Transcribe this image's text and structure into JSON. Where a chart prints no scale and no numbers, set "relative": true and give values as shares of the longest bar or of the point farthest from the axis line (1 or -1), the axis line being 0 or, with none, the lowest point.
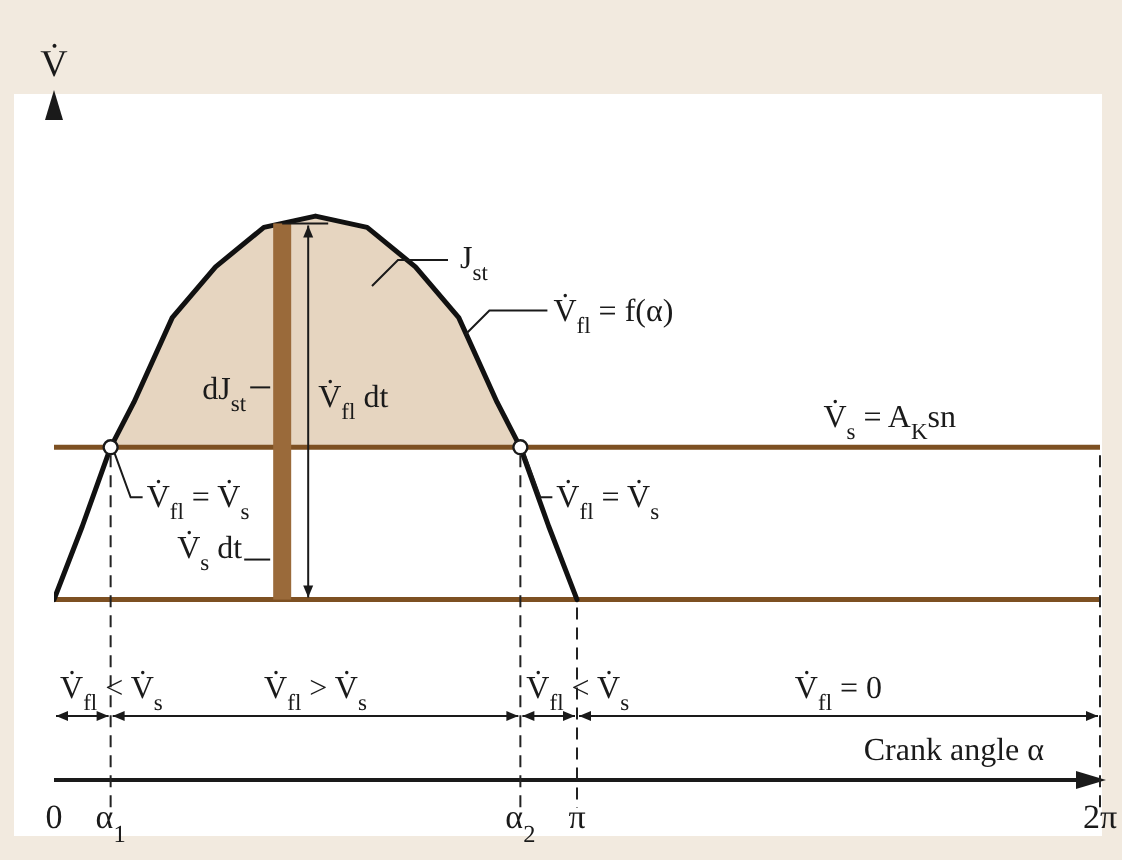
{
  "chart_data": {
    "type": "line",
    "relative": true,
    "xlabel": "Crank angle α",
    "ylabel": "V̇",
    "xlim": [
      0,
      6.28
    ],
    "xticks": [
      0,
      {
        "value": 3.14,
        "label": "π"
      },
      {
        "value": 6.28,
        "label": "2π"
      }
    ],
    "tick_labels": "x",
    "series": [
      {
        "color": "#111111",
        "x": [
          0,
          0.17,
          0.34,
          0.48,
          0.71,
          0.97,
          1.26,
          1.57,
          1.88,
          2.17,
          2.43,
          2.66,
          2.8,
          2.97,
          3.14
        ],
        "values": [
          0.32,
          0.45,
          0.59,
          0.67,
          0.82,
          0.91,
          0.98,
          1,
          0.98,
          0.91,
          0.82,
          0.67,
          0.59,
          0.45,
          0.32
        ],
        "lower": [
          null,
          null,
          0.59,
          0.59,
          0.59,
          0.59,
          0.59,
          0.59,
          0.59,
          0.59,
          0.59,
          0.59,
          0.59,
          null,
          null
        ],
        "upper": [
          null,
          null,
          0.59,
          0.67,
          0.82,
          0.91,
          0.98,
          1,
          0.98,
          0.91,
          0.82,
          0.67,
          0.59,
          null,
          null
        ]
      },
      {
        "type": "scatter",
        "color": "#ffffff",
        "marker": "circle",
        "x": [
          0.34,
          2.8
        ],
        "values": [
          0.59,
          0.59
        ]
      }
    ],
    "ref_lines": [
      {
        "axis": "y",
        "value": 0.59,
        "label": "V̇$_{s}$ = A$_{K}$sn",
        "color": "#7d5022"
      },
      {
        "axis": "y",
        "value": 0.32,
        "color": "#7d5022"
      },
      {
        "axis": "x",
        "value": 0.34,
        "label": "α$_{1}$",
        "line_style": "dashed",
        "color": "#222222"
      },
      {
        "axis": "x",
        "value": 2.8,
        "label": "α$_{2}$",
        "line_style": "dashed",
        "color": "#222222"
      },
      {
        "axis": "x",
        "value": 3.14,
        "line_style": "dashed",
        "color": "#222222"
      },
      {
        "axis": "x",
        "value": 6.28,
        "line_style": "dashed",
        "color": "#222222"
      }
    ],
    "annotations": [
      "J$_{st}$",
      {
        "text": "V̇$_{fl}$ = f(α)",
        "x": 2.47,
        "y": 0.79
      },
      "dJ$_{st}$",
      "V̇$_{fl}$ dt",
      "V̇$_{s}$ dt",
      {
        "text": "V̇$_{fl}$ = V̇$_{s}$",
        "x": 0.34,
        "y": 0.59
      },
      {
        "text": "V̇$_{fl}$ = V̇$_{s}$",
        "x": 2.8,
        "y": 0.59
      },
      "V̇$_{fl}$ < V̇$_{s}$",
      "V̇$_{fl}$ > V̇$_{s}$",
      "V̇$_{fl}$ < V̇$_{s}$",
      "V̇$_{fl}$ = 0"
    ]
  }
}
